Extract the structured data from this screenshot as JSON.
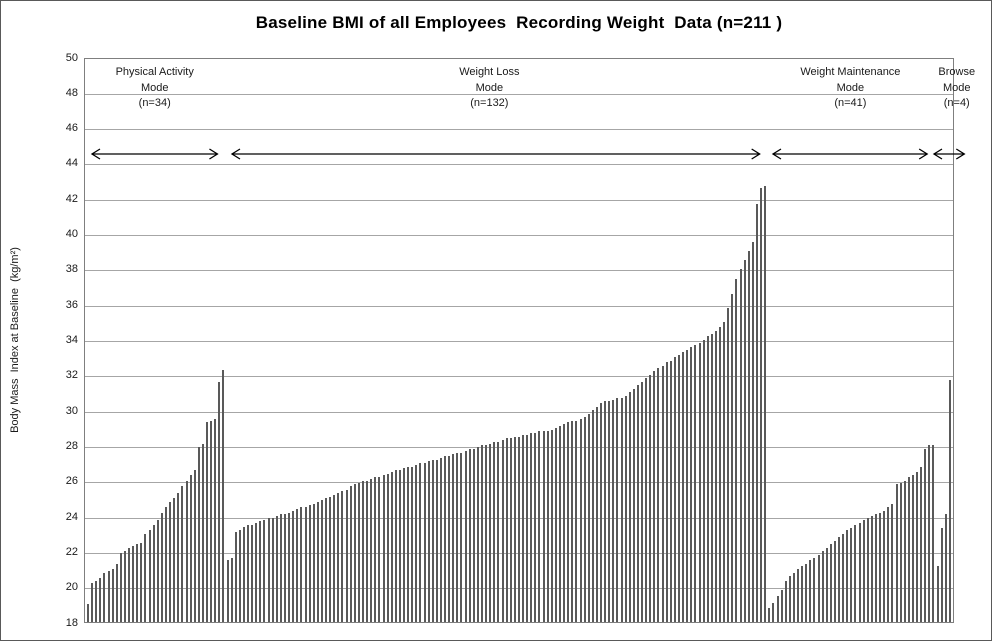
{
  "chart_data": {
    "type": "bar",
    "title": "Baseline BMI of all Employees  Recording Weight  Data (n=211 )",
    "ylabel": "Body Mass  Index at Baseline  (kg/m²)",
    "ylim": [
      18,
      50
    ],
    "yticks": [
      18,
      20,
      22,
      24,
      26,
      28,
      30,
      32,
      34,
      36,
      38,
      40,
      42,
      44,
      46,
      48,
      50
    ],
    "grid": true,
    "legend": "none",
    "bar_color": "#595959",
    "gridline_color": "#a6a6a6",
    "total_n": 211,
    "groups": [
      {
        "name": "Physical Activity Mode",
        "label_lines": [
          "Physical Activity",
          "Mode",
          "(n=34)"
        ],
        "n": 34,
        "values": [
          19.0,
          20.2,
          20.3,
          20.5,
          20.8,
          20.9,
          21.0,
          21.3,
          21.9,
          22.0,
          22.2,
          22.3,
          22.4,
          22.5,
          23.0,
          23.2,
          23.5,
          23.8,
          24.2,
          24.5,
          24.8,
          25.0,
          25.3,
          25.7,
          26.0,
          26.3,
          26.6,
          27.9,
          28.1,
          29.3,
          29.4,
          29.5,
          31.6,
          32.3
        ]
      },
      {
        "name": "Weight Loss Mode",
        "label_lines": [
          "Weight Loss",
          "Mode",
          "(n=132)"
        ],
        "n": 132,
        "values": [
          21.5,
          21.6,
          23.1,
          23.2,
          23.4,
          23.5,
          23.5,
          23.6,
          23.7,
          23.8,
          23.9,
          23.9,
          24.0,
          24.1,
          24.1,
          24.2,
          24.3,
          24.4,
          24.5,
          24.5,
          24.6,
          24.7,
          24.8,
          24.9,
          25.0,
          25.1,
          25.2,
          25.3,
          25.4,
          25.5,
          25.7,
          25.8,
          25.9,
          26.0,
          26.0,
          26.1,
          26.2,
          26.2,
          26.3,
          26.4,
          26.5,
          26.6,
          26.6,
          26.7,
          26.8,
          26.8,
          26.9,
          27.0,
          27.0,
          27.1,
          27.2,
          27.2,
          27.3,
          27.4,
          27.4,
          27.5,
          27.6,
          27.6,
          27.7,
          27.8,
          27.8,
          27.9,
          28.0,
          28.0,
          28.1,
          28.2,
          28.2,
          28.3,
          28.4,
          28.4,
          28.5,
          28.5,
          28.6,
          28.6,
          28.7,
          28.7,
          28.8,
          28.8,
          28.8,
          28.9,
          29.0,
          29.1,
          29.2,
          29.3,
          29.4,
          29.4,
          29.5,
          29.6,
          29.8,
          30.0,
          30.2,
          30.4,
          30.5,
          30.5,
          30.6,
          30.7,
          30.7,
          30.8,
          31.0,
          31.2,
          31.4,
          31.6,
          31.8,
          32.0,
          32.2,
          32.4,
          32.5,
          32.7,
          32.8,
          33.0,
          33.1,
          33.3,
          33.4,
          33.6,
          33.7,
          33.8,
          34.0,
          34.2,
          34.3,
          34.5,
          34.7,
          35.0,
          35.8,
          36.6,
          37.4,
          38.0,
          38.5,
          39.0,
          39.5,
          41.7,
          42.6,
          42.7
        ]
      },
      {
        "name": "Weight Maintenance Mode",
        "label_lines": [
          "Weight Maintenance",
          "Mode",
          "(n=41)"
        ],
        "n": 41,
        "values": [
          18.8,
          19.1,
          19.5,
          19.8,
          20.3,
          20.6,
          20.8,
          21.0,
          21.2,
          21.3,
          21.5,
          21.6,
          21.8,
          22.0,
          22.2,
          22.4,
          22.6,
          22.8,
          23.0,
          23.2,
          23.3,
          23.5,
          23.6,
          23.8,
          23.9,
          24.0,
          24.1,
          24.2,
          24.3,
          24.5,
          24.7,
          25.8,
          25.9,
          26.0,
          26.2,
          26.3,
          26.5,
          26.8,
          27.8,
          28.0,
          28.0
        ]
      },
      {
        "name": "Browse Mode",
        "label_lines": [
          "Browse",
          "Mode",
          "(n=4)"
        ],
        "n": 4,
        "values": [
          21.2,
          23.3,
          24.1,
          31.7
        ]
      }
    ]
  }
}
